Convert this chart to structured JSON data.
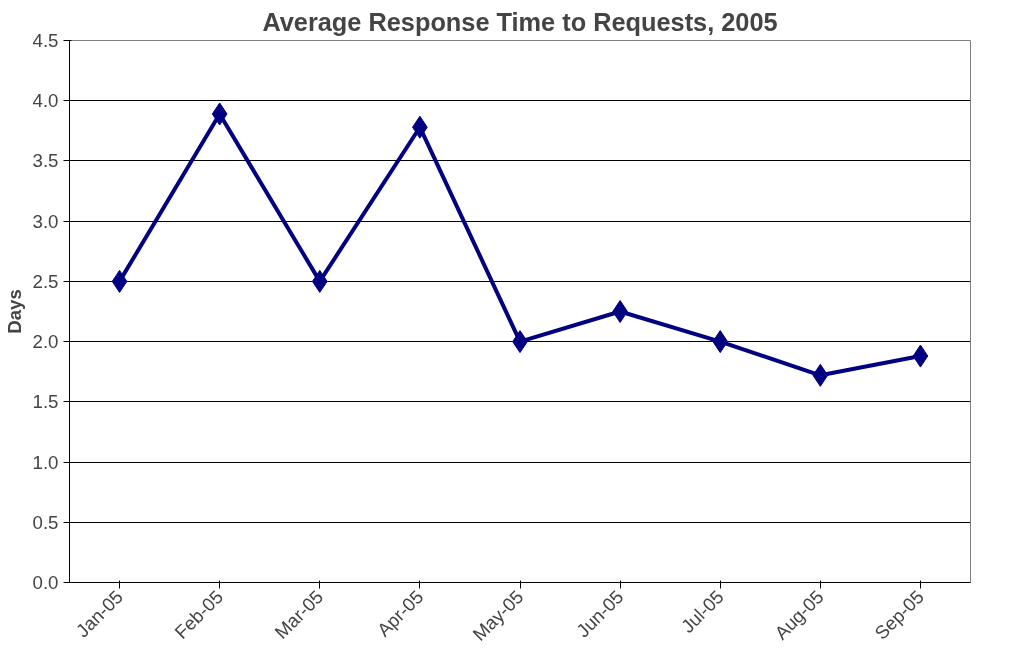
{
  "chart_data": {
    "type": "line",
    "title": "Average Response Time to Requests, 2005",
    "ylabel": "Days",
    "categories": [
      "Jan-05",
      "Feb-05",
      "Mar-05",
      "Apr-05",
      "May-05",
      "Jun-05",
      "Jul-05",
      "Aug-05",
      "Sep-05"
    ],
    "series": [
      {
        "color": "#000080",
        "values": [
          2.5,
          3.89,
          2.5,
          3.78,
          2.0,
          2.25,
          2.0,
          1.72,
          1.88
        ]
      }
    ],
    "ylim": [
      0,
      4.5
    ],
    "yticks": [
      {
        "value": 0,
        "label": "0.0"
      },
      {
        "value": 0.5,
        "label": "0.5"
      },
      {
        "value": 1,
        "label": "1.0"
      },
      {
        "value": 1.5,
        "label": "1.5"
      },
      {
        "value": 2,
        "label": "2.0"
      },
      {
        "value": 2.5,
        "label": "2.5"
      },
      {
        "value": 3,
        "label": "3.0"
      },
      {
        "value": 3.5,
        "label": "3.5"
      },
      {
        "value": 4,
        "label": "4.0"
      },
      {
        "value": 4.5,
        "label": "4.5"
      }
    ],
    "grid": "y",
    "marker": "diamond",
    "line_style": "solid"
  }
}
